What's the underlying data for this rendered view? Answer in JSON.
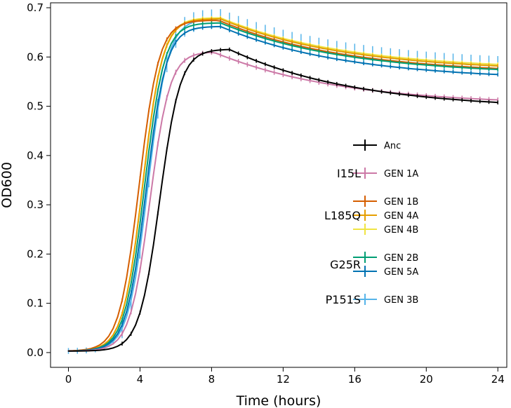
{
  "chart_data": {
    "type": "line",
    "title": "",
    "xlabel": "Time (hours)",
    "ylabel": "OD600",
    "xlim": [
      -1.0,
      24.5
    ],
    "ylim": [
      -0.03,
      0.71
    ],
    "x_ticks": [
      0,
      4,
      8,
      12,
      16,
      20,
      24
    ],
    "y_ticks": [
      0.0,
      0.1,
      0.2,
      0.3,
      0.4,
      0.5,
      0.6,
      0.7
    ],
    "x_tick_labels": [
      "0",
      "4",
      "8",
      "12",
      "16",
      "20",
      "24"
    ],
    "y_tick_labels": [
      "0.0",
      "0.1",
      "0.2",
      "0.3",
      "0.4",
      "0.5",
      "0.6",
      "0.7"
    ],
    "grid": false,
    "legend_location": "center-right",
    "legend_groups": [
      {
        "label": "",
        "members": [
          "Anc"
        ]
      },
      {
        "label": "I15L",
        "members": [
          "GEN 1A"
        ]
      },
      {
        "label": "L185Q",
        "members": [
          "GEN 1B",
          "GEN 4A",
          "GEN 4B"
        ]
      },
      {
        "label": "G25R",
        "members": [
          "GEN 2B",
          "GEN 5A"
        ]
      },
      {
        "label": "P151S",
        "members": [
          "GEN 3B"
        ]
      }
    ],
    "series": [
      {
        "name": "Anc",
        "color": "#000000",
        "lag": 5.1,
        "rate": 1.75,
        "peak_time": 9.0,
        "peak": 0.595,
        "final": 0.49,
        "err": 0.004
      },
      {
        "name": "GEN 1A",
        "color": "#cc79a7",
        "lag": 4.55,
        "rate": 1.8,
        "peak_time": 8.1,
        "peak": 0.59,
        "final": 0.495,
        "err": 0.005
      },
      {
        "name": "GEN 1B",
        "color": "#d55e00",
        "lag": 3.95,
        "rate": 1.8,
        "peak_time": 8.4,
        "peak": 0.652,
        "final": 0.557,
        "err": 0.004
      },
      {
        "name": "GEN 4A",
        "color": "#e69f00",
        "lag": 4.15,
        "rate": 1.8,
        "peak_time": 8.5,
        "peak": 0.655,
        "final": 0.562,
        "err": 0.004
      },
      {
        "name": "GEN 4B",
        "color": "#f0e442",
        "lag": 4.15,
        "rate": 1.8,
        "peak_time": 8.5,
        "peak": 0.657,
        "final": 0.565,
        "err": 0.004
      },
      {
        "name": "GEN 2B",
        "color": "#009e73",
        "lag": 4.25,
        "rate": 1.8,
        "peak_time": 8.5,
        "peak": 0.647,
        "final": 0.555,
        "err": 0.004
      },
      {
        "name": "GEN 5A",
        "color": "#0072b2",
        "lag": 4.35,
        "rate": 1.8,
        "peak_time": 8.5,
        "peak": 0.64,
        "final": 0.545,
        "err": 0.004
      },
      {
        "name": "GEN 3B",
        "color": "#56b4e9",
        "lag": 4.45,
        "rate": 1.8,
        "peak_time": 8.5,
        "peak": 0.655,
        "final": 0.562,
        "err": 0.02
      }
    ]
  }
}
